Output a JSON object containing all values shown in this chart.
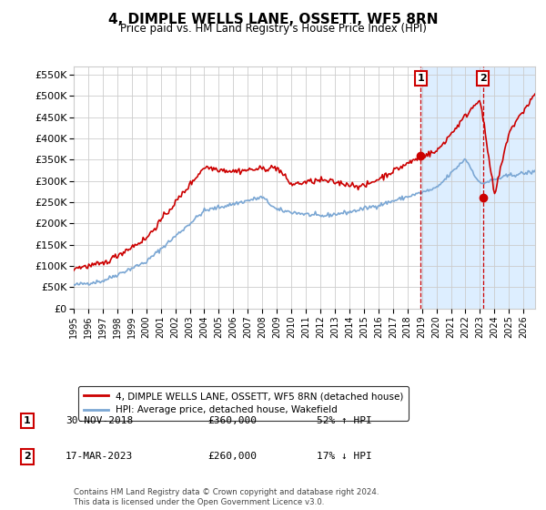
{
  "title": "4, DIMPLE WELLS LANE, OSSETT, WF5 8RN",
  "subtitle": "Price paid vs. HM Land Registry's House Price Index (HPI)",
  "ylabel_ticks": [
    "£0",
    "£50K",
    "£100K",
    "£150K",
    "£200K",
    "£250K",
    "£300K",
    "£350K",
    "£400K",
    "£450K",
    "£500K",
    "£550K"
  ],
  "ytick_values": [
    0,
    50000,
    100000,
    150000,
    200000,
    250000,
    300000,
    350000,
    400000,
    450000,
    500000,
    550000
  ],
  "ylim": [
    0,
    570000
  ],
  "xlim_start": 1995.0,
  "xlim_end": 2026.8,
  "xtick_years": [
    1995,
    1996,
    1997,
    1998,
    1999,
    2000,
    2001,
    2002,
    2003,
    2004,
    2005,
    2006,
    2007,
    2008,
    2009,
    2010,
    2011,
    2012,
    2013,
    2014,
    2015,
    2016,
    2017,
    2018,
    2019,
    2020,
    2021,
    2022,
    2023,
    2024,
    2025,
    2026
  ],
  "marker1_x": 2018.92,
  "marker1_y": 360000,
  "marker1_label": "1",
  "marker1_date": "30-NOV-2018",
  "marker1_price": "£360,000",
  "marker1_hpi": "52% ↑ HPI",
  "marker2_x": 2023.21,
  "marker2_y": 260000,
  "marker2_label": "2",
  "marker2_date": "17-MAR-2023",
  "marker2_price": "£260,000",
  "marker2_hpi": "17% ↓ HPI",
  "property_color": "#cc0000",
  "hpi_color": "#7ba7d4",
  "shaded_color": "#ddeeff",
  "dashed_color": "#cc0000",
  "legend_property": "4, DIMPLE WELLS LANE, OSSETT, WF5 8RN (detached house)",
  "legend_hpi": "HPI: Average price, detached house, Wakefield",
  "footer": "Contains HM Land Registry data © Crown copyright and database right 2024.\nThis data is licensed under the Open Government Licence v3.0.",
  "background_color": "#ffffff",
  "grid_color": "#cccccc"
}
